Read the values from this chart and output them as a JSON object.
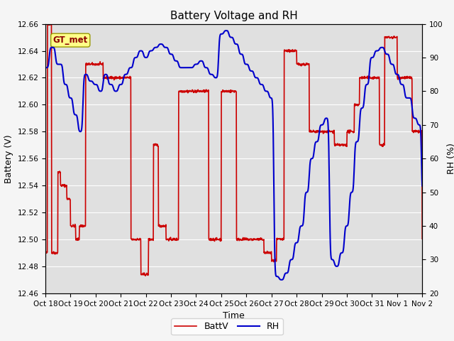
{
  "title": "Battery Voltage and RH",
  "xlabel": "Time",
  "ylabel_left": "Battery (V)",
  "ylabel_right": "RH (%)",
  "annotation": "GT_met",
  "xlim": [
    0,
    15
  ],
  "ylim_left": [
    12.46,
    12.66
  ],
  "ylim_right": [
    20,
    100
  ],
  "yticks_left": [
    12.46,
    12.48,
    12.5,
    12.52,
    12.54,
    12.56,
    12.58,
    12.6,
    12.62,
    12.64,
    12.66
  ],
  "yticks_right": [
    20,
    30,
    40,
    50,
    60,
    70,
    80,
    90,
    100
  ],
  "xtick_labels": [
    "Oct 18",
    "Oct 19",
    "Oct 20",
    "Oct 21",
    "Oct 22",
    "Oct 23",
    "Oct 24",
    "Oct 25",
    "Oct 26",
    "Oct 27",
    "Oct 28",
    "Oct 29",
    "Oct 30",
    "Oct 31",
    "Nov 1",
    "Nov 2"
  ],
  "plot_bg_color": "#e0e0e0",
  "fig_bg_color": "#f5f5f5",
  "grid_color": "#ffffff",
  "batt_color": "#cc0000",
  "rh_color": "#0000cc",
  "legend_batt": "BattV",
  "legend_rh": "RH",
  "title_fontsize": 11,
  "axis_fontsize": 9,
  "tick_fontsize": 7.5,
  "legend_fontsize": 9,
  "batt_lw": 1.2,
  "rh_lw": 1.5
}
